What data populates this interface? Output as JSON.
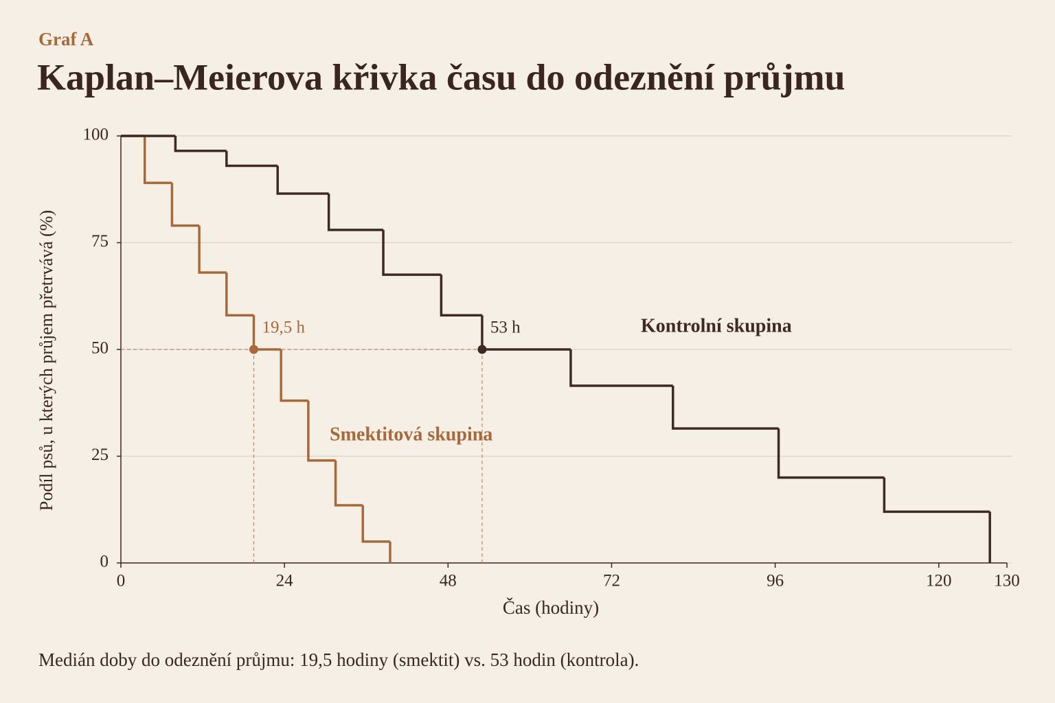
{
  "chart_data": {
    "type": "step",
    "label": "Graf A",
    "title": "Kaplan–Meierova křivka času do odeznění průjmu",
    "x_label": "Čas (hodiny)",
    "y_label": "Podíl psů, u kterých průjem přetrvává (%)",
    "footnote": "Medián doby do odeznění průjmu: 19,5 hodiny (smektit) vs. 53 hodin (kontrola).",
    "xlim": [
      0,
      130
    ],
    "xticks": [
      0,
      24,
      48,
      72,
      96,
      120,
      130
    ],
    "ylim": [
      0,
      100
    ],
    "yticks": [
      0,
      25,
      50,
      75,
      100
    ],
    "grid": true,
    "median_level": 50,
    "series": [
      {
        "name": "Smektitová skupina",
        "color": "#a8693a",
        "x": [
          0,
          3.5,
          7.5,
          11.5,
          15.5,
          19.5,
          23.5,
          27.5,
          31.5,
          35.5,
          39.5
        ],
        "values": [
          100,
          89,
          79,
          68,
          58,
          50,
          38,
          24,
          13.5,
          5,
          0
        ],
        "median": 19.5,
        "median_label": "19,5 h"
      },
      {
        "name": "Kontrolní skupina",
        "color": "#3d2a22",
        "x": [
          0,
          8,
          15.5,
          23,
          30.5,
          38.5,
          47,
          53,
          66,
          81,
          96.5,
          112,
          127.5
        ],
        "values": [
          100,
          96.5,
          93,
          86.5,
          78,
          67.5,
          58,
          50,
          41.5,
          31.5,
          20,
          12,
          0
        ],
        "median": 53,
        "median_label": "53 h"
      }
    ]
  }
}
